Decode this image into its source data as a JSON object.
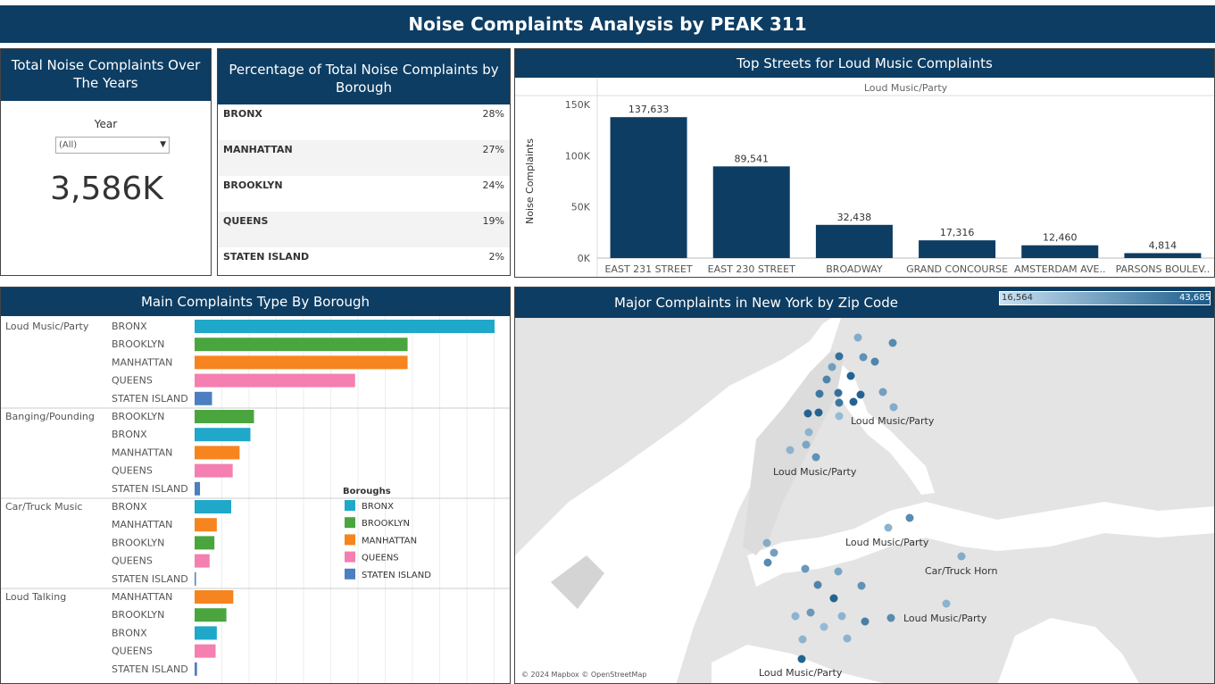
{
  "title": "Noise Complaints Analysis by PEAK 311",
  "total_panel": {
    "title": "Total Noise Complaints Over The Years",
    "year_label": "Year",
    "year_value": "(All)",
    "total": "3,586K"
  },
  "pct_panel": {
    "title": "Percentage of Total Noise Complaints by Borough",
    "rows": [
      {
        "name": "BRONX",
        "pct": "28%"
      },
      {
        "name": "MANHATTAN",
        "pct": "27%"
      },
      {
        "name": "BROOKLYN",
        "pct": "24%"
      },
      {
        "name": "QUEENS",
        "pct": "19%"
      },
      {
        "name": "STATEN ISLAND",
        "pct": "2%"
      }
    ]
  },
  "colors": {
    "header": "#0d3d63",
    "bar": "#0d3d63",
    "BRONX": "#1fa8c9",
    "BROOKLYN": "#4aa53f",
    "MANHATTAN": "#f6841f",
    "QUEENS": "#f47fb0",
    "STATEN ISLAND": "#4d7ec0"
  },
  "chart_data": [
    {
      "type": "bar",
      "title": "Top Streets for Loud Music Complaints",
      "subtitle": "Loud Music/Party",
      "ylabel": "Noise Complaints",
      "ylim": [
        0,
        150000
      ],
      "yticks": [
        "150K",
        "100K",
        "50K",
        "0K"
      ],
      "categories": [
        "EAST  231 STREET",
        "EAST  230 STREET",
        "BROADWAY",
        "GRAND CONCOURSE",
        "AMSTERDAM AVE..",
        "PARSONS BOULEV.."
      ],
      "values": [
        137633,
        89541,
        32438,
        17316,
        12460,
        4814
      ],
      "labels": [
        "137,633",
        "89,541",
        "32,438",
        "17,316",
        "12,460",
        "4,814"
      ]
    },
    {
      "type": "bar",
      "orientation": "horizontal",
      "title": "Main Complaints Type By Borough",
      "legend_title": "Boroughs",
      "legend": [
        "BRONX",
        "BROOKLYN",
        "MANHATTAN",
        "QUEENS",
        "STATEN ISLAND"
      ],
      "xlim": [
        0,
        1000000
      ],
      "groups": [
        {
          "type": "Loud Music/Party",
          "rows": [
            {
              "borough": "BRONX",
              "value": 1000000
            },
            {
              "borough": "BROOKLYN",
              "value": 710000
            },
            {
              "borough": "MANHATTAN",
              "value": 710000
            },
            {
              "borough": "QUEENS",
              "value": 535000
            },
            {
              "borough": "STATEN ISLAND",
              "value": 58000
            }
          ]
        },
        {
          "type": "Banging/Pounding",
          "rows": [
            {
              "borough": "BROOKLYN",
              "value": 198000
            },
            {
              "borough": "BRONX",
              "value": 186000
            },
            {
              "borough": "MANHATTAN",
              "value": 150000
            },
            {
              "borough": "QUEENS",
              "value": 127000
            },
            {
              "borough": "STATEN ISLAND",
              "value": 18000
            }
          ]
        },
        {
          "type": "Car/Truck Music",
          "rows": [
            {
              "borough": "BRONX",
              "value": 122000
            },
            {
              "borough": "MANHATTAN",
              "value": 74000
            },
            {
              "borough": "BROOKLYN",
              "value": 66000
            },
            {
              "borough": "QUEENS",
              "value": 50000
            },
            {
              "borough": "STATEN ISLAND",
              "value": 4000
            }
          ]
        },
        {
          "type": "Loud Talking",
          "rows": [
            {
              "borough": "MANHATTAN",
              "value": 129000
            },
            {
              "borough": "BROOKLYN",
              "value": 106000
            },
            {
              "borough": "BRONX",
              "value": 74000
            },
            {
              "borough": "QUEENS",
              "value": 70000
            },
            {
              "borough": "STATEN ISLAND",
              "value": 8000
            }
          ]
        }
      ]
    }
  ],
  "map": {
    "title": "Major Complaints in New York by Zip Code",
    "legend_min": "16,564",
    "legend_max": "43,685",
    "labels": [
      "Loud Music/Party",
      "Loud Music/Party",
      "Loud Music/Party",
      "Car/Truck Horn",
      "Loud Music/Party",
      "Loud Music/Party"
    ],
    "attribution": "© 2024 Mapbox © OpenStreetMap"
  }
}
